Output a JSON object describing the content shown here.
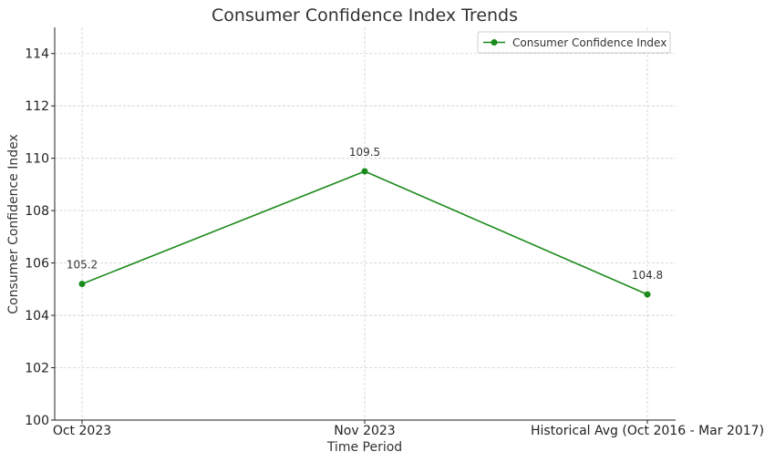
{
  "chart_data": {
    "type": "line",
    "title": "Consumer Confidence Index Trends",
    "xlabel": "Time Period",
    "ylabel": "Consumer Confidence Index",
    "categories": [
      "Oct 2023",
      "Nov 2023",
      "Historical Avg (Oct 2016 - Mar 2017)"
    ],
    "series": [
      {
        "name": "Consumer Confidence Index",
        "values": [
          105.2,
          109.5,
          104.8
        ],
        "color": "#1a8a1a"
      }
    ],
    "data_labels": [
      "105.2",
      "109.5",
      "104.8"
    ],
    "ylim": [
      100,
      115
    ],
    "yticks": [
      100,
      102,
      104,
      106,
      108,
      110,
      112,
      114
    ],
    "ytick_labels": [
      "100",
      "102",
      "104",
      "106",
      "108",
      "110",
      "112",
      "114"
    ],
    "grid": true,
    "legend_position": "top-right"
  }
}
